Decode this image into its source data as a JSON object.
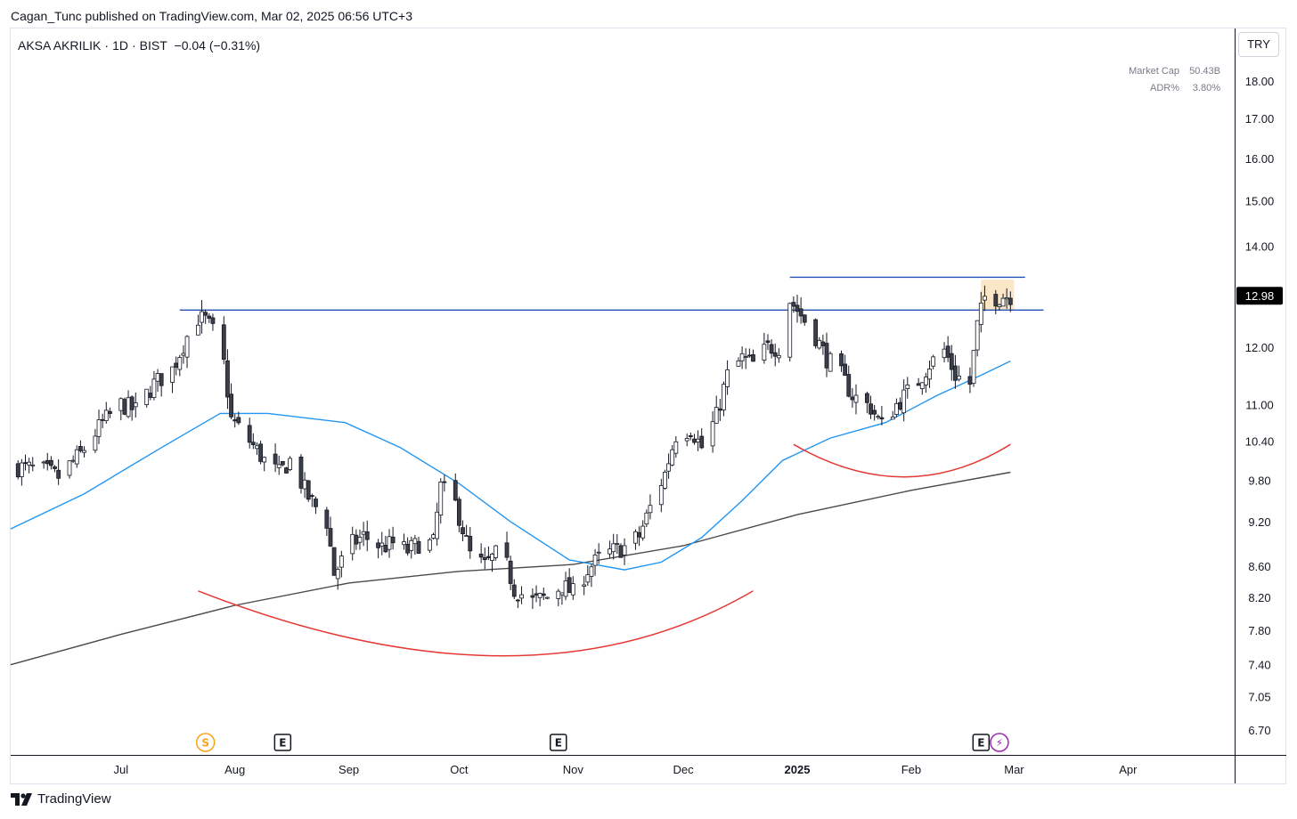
{
  "header": {
    "publisher": "Cagan_Tunc published on TradingView.com, Mar 02, 2025 06:56 UTC+3"
  },
  "symbol": {
    "name": "AKSA AKRILIK",
    "interval": "1D",
    "exchange": "BIST",
    "change": "−0.04 (−0.31%)"
  },
  "stats": [
    {
      "label": "Market Cap",
      "value": "50.43B"
    },
    {
      "label": "ADR%",
      "value": "3.80%"
    }
  ],
  "currency": "TRY",
  "last_price": "12.98",
  "footer": {
    "brand": "TradingView"
  },
  "colors": {
    "candle_up_fill": "#ffffff",
    "candle_down_fill": "#3c3f4a",
    "candle_outline": "#131722",
    "ma_blue": "#2196f3",
    "ma_black": "#4a4a4a",
    "trend_line": "#2451b7",
    "arc_red": "#e53935",
    "highlight": "#fbe3c2",
    "price_tag": "#000000"
  },
  "event_markers": [
    {
      "label": "S",
      "date": "2024-07-24",
      "kind": "split",
      "color": "#f7a21b"
    },
    {
      "label": "E",
      "date": "2024-08-14",
      "kind": "earnings",
      "color": "#131722"
    },
    {
      "label": "E",
      "date": "2024-10-28",
      "kind": "earnings",
      "color": "#131722"
    },
    {
      "label": "E",
      "date": "2025-02-20",
      "kind": "earnings",
      "color": "#131722"
    },
    {
      "label": "⚡",
      "date": "2025-02-25",
      "kind": "dividend",
      "color": "#9c27b0"
    }
  ],
  "chart_data": {
    "type": "candlestick",
    "scale": "log",
    "x_range": [
      "2024-06-01",
      "2025-04-30"
    ],
    "y_range": [
      6.45,
      19.5
    ],
    "y_ticks": [
      "18.00",
      "17.00",
      "16.00",
      "15.00",
      "14.00",
      "12.00",
      "11.00",
      "10.40",
      "9.80",
      "9.20",
      "8.60",
      "8.20",
      "7.80",
      "7.40",
      "7.05",
      "6.70"
    ],
    "x_ticks": [
      {
        "label": "Jul",
        "date": "2024-07-01"
      },
      {
        "label": "Aug",
        "date": "2024-08-01"
      },
      {
        "label": "Sep",
        "date": "2024-09-01"
      },
      {
        "label": "Oct",
        "date": "2024-10-01"
      },
      {
        "label": "Nov",
        "date": "2024-11-01"
      },
      {
        "label": "Dec",
        "date": "2024-12-01"
      },
      {
        "label": "2025",
        "date": "2025-01-01",
        "bold": true
      },
      {
        "label": "Feb",
        "date": "2025-02-01"
      },
      {
        "label": "Mar",
        "date": "2025-03-01"
      },
      {
        "label": "Apr",
        "date": "2025-04-01"
      }
    ],
    "close_path": [
      [
        "2024-06-03",
        10.0
      ],
      [
        "2024-06-10",
        9.95
      ],
      [
        "2024-06-14",
        9.85
      ],
      [
        "2024-06-20",
        10.2
      ],
      [
        "2024-06-26",
        10.7
      ],
      [
        "2024-07-01",
        11.0
      ],
      [
        "2024-07-05",
        10.9
      ],
      [
        "2024-07-10",
        11.35
      ],
      [
        "2024-07-15",
        11.6
      ],
      [
        "2024-07-19",
        12.2
      ],
      [
        "2024-07-22",
        12.55
      ],
      [
        "2024-07-24",
        12.5
      ],
      [
        "2024-07-26",
        12.3
      ],
      [
        "2024-07-29",
        11.7
      ],
      [
        "2024-07-31",
        10.75
      ],
      [
        "2024-08-05",
        10.4
      ],
      [
        "2024-08-09",
        10.1
      ],
      [
        "2024-08-13",
        9.9
      ],
      [
        "2024-08-16",
        10.1
      ],
      [
        "2024-08-21",
        9.55
      ],
      [
        "2024-08-26",
        9.2
      ],
      [
        "2024-08-28",
        8.5
      ],
      [
        "2024-09-02",
        8.9
      ],
      [
        "2024-09-05",
        9.0
      ],
      [
        "2024-09-10",
        8.85
      ],
      [
        "2024-09-13",
        8.9
      ],
      [
        "2024-09-17",
        8.8
      ],
      [
        "2024-09-20",
        8.9
      ],
      [
        "2024-09-24",
        8.9
      ],
      [
        "2024-09-26",
        9.7
      ],
      [
        "2024-09-30",
        9.45
      ],
      [
        "2024-10-02",
        9.1
      ],
      [
        "2024-10-04",
        8.75
      ],
      [
        "2024-10-08",
        8.6
      ],
      [
        "2024-10-11",
        8.75
      ],
      [
        "2024-10-14",
        8.6
      ],
      [
        "2024-10-16",
        8.3
      ],
      [
        "2024-10-21",
        8.15
      ],
      [
        "2024-10-25",
        8.2
      ],
      [
        "2024-10-29",
        8.35
      ],
      [
        "2024-11-01",
        8.25
      ],
      [
        "2024-11-05",
        8.55
      ],
      [
        "2024-11-08",
        8.7
      ],
      [
        "2024-11-12",
        8.8
      ],
      [
        "2024-11-15",
        8.85
      ],
      [
        "2024-11-19",
        9.0
      ],
      [
        "2024-11-22",
        9.4
      ],
      [
        "2024-11-26",
        9.9
      ],
      [
        "2024-11-29",
        10.5
      ],
      [
        "2024-12-03",
        10.6
      ],
      [
        "2024-12-06",
        10.3
      ],
      [
        "2024-12-10",
        10.8
      ],
      [
        "2024-12-13",
        11.5
      ],
      [
        "2024-12-17",
        11.8
      ],
      [
        "2024-12-20",
        11.7
      ],
      [
        "2024-12-24",
        12.0
      ],
      [
        "2024-12-27",
        12.0
      ],
      [
        "2024-12-30",
        12.9
      ],
      [
        "2025-01-02",
        12.6
      ],
      [
        "2025-01-06",
        12.2
      ],
      [
        "2025-01-09",
        11.8
      ],
      [
        "2025-01-13",
        11.5
      ],
      [
        "2025-01-16",
        11.15
      ],
      [
        "2025-01-21",
        10.95
      ],
      [
        "2025-01-24",
        10.65
      ],
      [
        "2025-01-28",
        11.0
      ],
      [
        "2025-02-03",
        11.4
      ],
      [
        "2025-02-06",
        11.7
      ],
      [
        "2025-02-10",
        11.95
      ],
      [
        "2025-02-13",
        11.5
      ],
      [
        "2025-02-17",
        11.35
      ],
      [
        "2025-02-19",
        12.4
      ],
      [
        "2025-02-21",
        12.95
      ],
      [
        "2025-02-24",
        12.95
      ],
      [
        "2025-02-26",
        12.98
      ],
      [
        "2025-02-28",
        12.98
      ]
    ],
    "ma50": [
      [
        "2024-06-01",
        9.1
      ],
      [
        "2024-06-21",
        9.6
      ],
      [
        "2024-07-12",
        10.3
      ],
      [
        "2024-07-28",
        10.85
      ],
      [
        "2024-08-10",
        10.85
      ],
      [
        "2024-08-31",
        10.7
      ],
      [
        "2024-09-15",
        10.3
      ],
      [
        "2024-10-01",
        9.75
      ],
      [
        "2024-10-15",
        9.2
      ],
      [
        "2024-10-31",
        8.68
      ],
      [
        "2024-11-15",
        8.55
      ],
      [
        "2024-11-25",
        8.65
      ],
      [
        "2024-12-06",
        8.98
      ],
      [
        "2024-12-17",
        9.5
      ],
      [
        "2024-12-28",
        10.1
      ],
      [
        "2025-01-10",
        10.45
      ],
      [
        "2025-01-25",
        10.7
      ],
      [
        "2025-02-08",
        11.15
      ],
      [
        "2025-02-20",
        11.5
      ],
      [
        "2025-02-28",
        11.75
      ]
    ],
    "ma200": [
      [
        "2024-06-01",
        7.4
      ],
      [
        "2024-07-01",
        7.75
      ],
      [
        "2024-08-01",
        8.1
      ],
      [
        "2024-09-01",
        8.38
      ],
      [
        "2024-10-01",
        8.53
      ],
      [
        "2024-11-01",
        8.62
      ],
      [
        "2024-12-01",
        8.87
      ],
      [
        "2025-01-01",
        9.3
      ],
      [
        "2025-02-01",
        9.65
      ],
      [
        "2025-02-28",
        9.92
      ]
    ],
    "resistance_lines": [
      {
        "from": "2024-07-17",
        "to": "2025-03-09",
        "value": 12.7
      },
      {
        "from": "2024-12-30",
        "to": "2025-03-04",
        "value": 13.35
      }
    ],
    "arcs": [
      {
        "start": [
          "2024-07-22",
          8.28
        ],
        "vertex": [
          "2024-10-13",
          7.5
        ],
        "end": [
          "2024-12-20",
          8.28
        ]
      },
      {
        "start": [
          "2024-12-31",
          10.35
        ],
        "vertex": [
          "2025-01-30",
          9.85
        ],
        "end": [
          "2025-02-28",
          10.35
        ]
      }
    ],
    "highlight_box": {
      "from": "2025-02-20",
      "to": "2025-03-01",
      "low": 12.7,
      "high": 13.3
    },
    "last_price": 12.98
  }
}
